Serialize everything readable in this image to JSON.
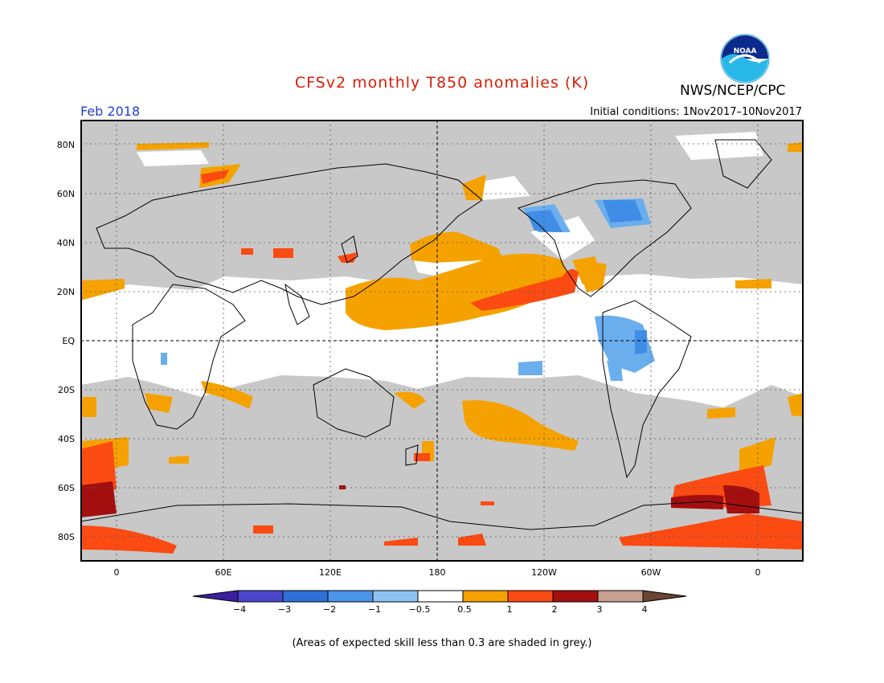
{
  "title": "CFSv2 monthly T850 anomalies (K)",
  "agency": "NWS/NCEP/CPC",
  "logo_text": "NOAA",
  "valid_month": "Feb 2018",
  "initial_conditions": "Initial conditions: 1Nov2017–10Nov2017",
  "lat_ticks": [
    "80N",
    "60N",
    "40N",
    "20N",
    "EQ",
    "20S",
    "40S",
    "60S",
    "80S"
  ],
  "lon_ticks": [
    "0",
    "60E",
    "120E",
    "180",
    "120W",
    "60W",
    "0"
  ],
  "colorbar": {
    "labels": [
      "−4",
      "−3",
      "−2",
      "−1",
      "−0.5",
      "0.5",
      "1",
      "2",
      "3",
      "4"
    ],
    "colors": [
      "#3a1fa0",
      "#4a45c9",
      "#2f6fd6",
      "#4b96ea",
      "#8cc3f2",
      "#ffffff",
      "#f5a200",
      "#fb4b12",
      "#a30f0f",
      "#c8a090",
      "#6b4434"
    ]
  },
  "skill_note": "(Areas of expected skill less than 0.3 are shaded in grey.)",
  "colors": {
    "title": "#d81e05",
    "month": "#2040d0",
    "grey_mask": "#c8c8c8",
    "orange": "#f5a200",
    "red": "#fb4b12",
    "darkred": "#a30f0f",
    "lightblue": "#6aaeee",
    "blue": "#3f8de6"
  }
}
